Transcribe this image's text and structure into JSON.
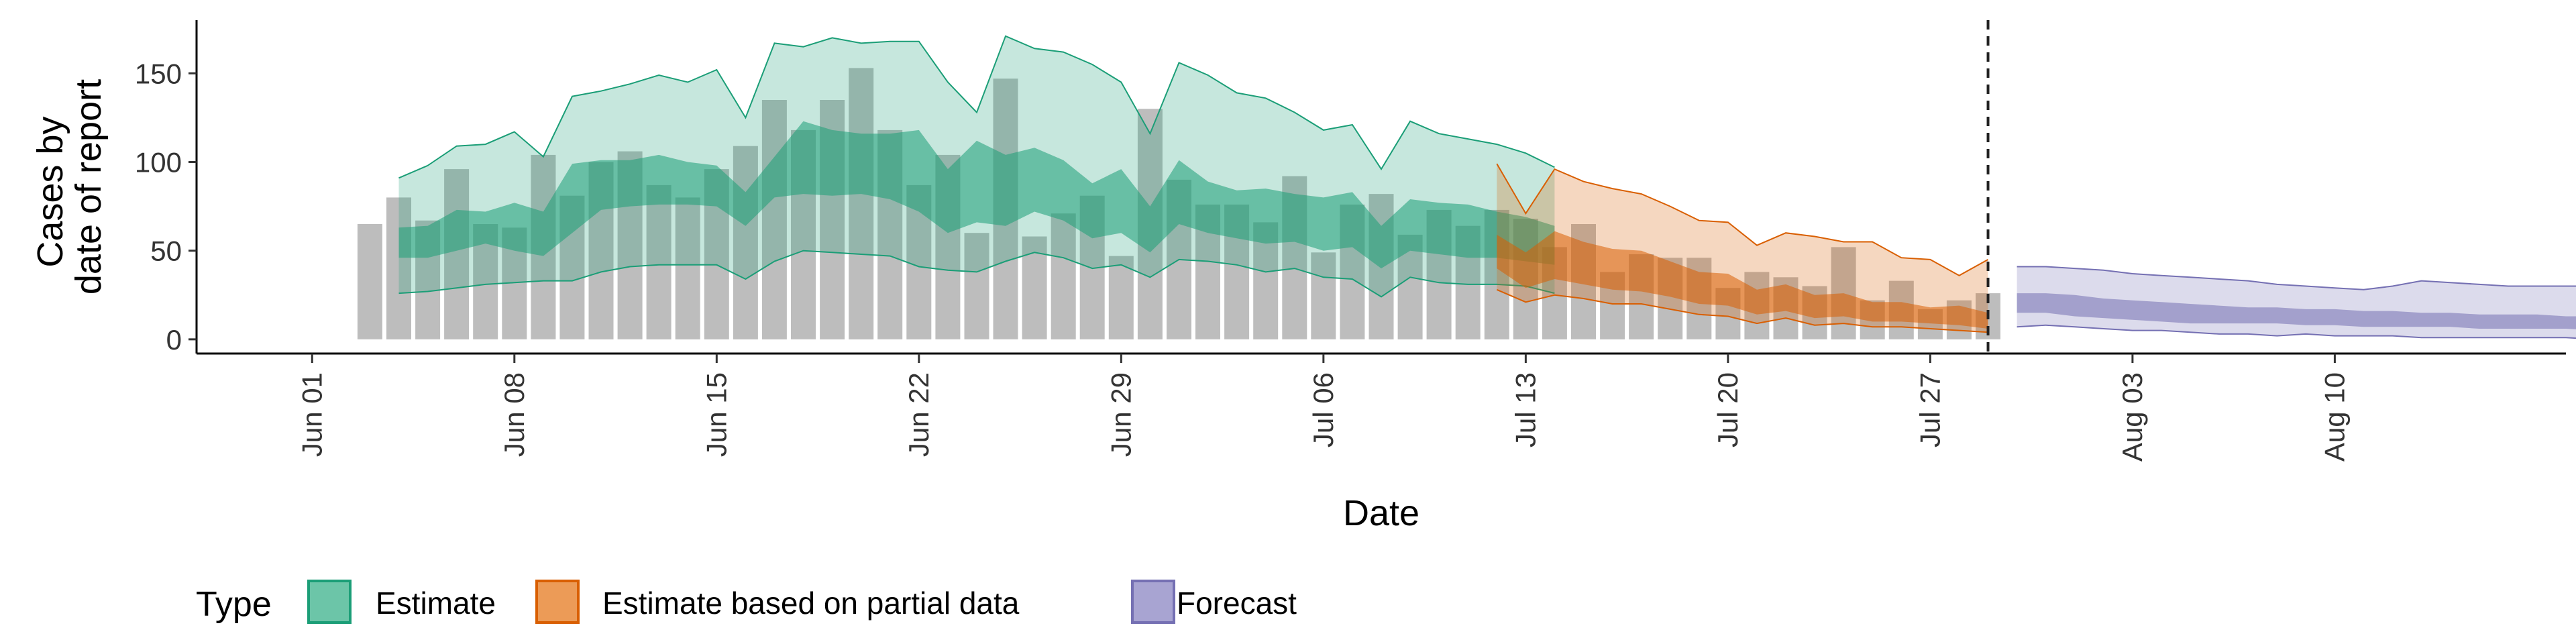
{
  "chart_data": {
    "type": "bar",
    "title": "",
    "xlabel": "Date",
    "ylabel_lines": [
      "Cases by",
      "date of report"
    ],
    "ylim": [
      -8,
      180
    ],
    "y_ticks": [
      0,
      50,
      100,
      150
    ],
    "x_range": [
      "2021-05-28",
      "2021-08-18"
    ],
    "x_ticks": [
      {
        "date": "2021-06-01",
        "label": "Jun 01"
      },
      {
        "date": "2021-06-08",
        "label": "Jun 08"
      },
      {
        "date": "2021-06-15",
        "label": "Jun 15"
      },
      {
        "date": "2021-06-22",
        "label": "Jun 22"
      },
      {
        "date": "2021-06-29",
        "label": "Jun 29"
      },
      {
        "date": "2021-07-06",
        "label": "Jul 06"
      },
      {
        "date": "2021-07-13",
        "label": "Jul 13"
      },
      {
        "date": "2021-07-20",
        "label": "Jul 20"
      },
      {
        "date": "2021-07-27",
        "label": "Jul 27"
      },
      {
        "date": "2021-08-03",
        "label": "Aug 03"
      },
      {
        "date": "2021-08-10",
        "label": "Aug 10"
      }
    ],
    "forecast_date": "2021-07-29",
    "bar_color": "#bdbdbd",
    "bar_start_date": "2021-06-03",
    "bars": [
      65,
      80,
      67,
      96,
      65,
      63,
      104,
      81,
      100,
      106,
      87,
      80,
      96,
      109,
      135,
      118,
      135,
      153,
      118,
      87,
      104,
      60,
      147,
      58,
      71,
      81,
      47,
      130,
      90,
      76,
      76,
      66,
      92,
      49,
      76,
      82,
      59,
      73,
      64,
      73,
      68,
      52,
      65,
      38,
      48,
      46,
      46,
      29,
      38,
      35,
      30,
      52,
      22,
      33,
      17,
      22,
      26
    ],
    "legend": {
      "title": "Type",
      "position": "bottom",
      "entries": [
        {
          "label": "Estimate",
          "fill": "#6cc5a8",
          "stroke": "#1b9e77"
        },
        {
          "label": "Estimate based on partial data",
          "fill": "#ec9b57",
          "stroke": "#d95f02"
        },
        {
          "label": "Forecast",
          "fill": "#a8a4d2",
          "stroke": "#7570b3"
        }
      ]
    },
    "series": [
      {
        "name": "Estimate",
        "start_date": "2021-06-04",
        "fill": "#1b9e77",
        "stroke": "#1b9e77",
        "outer_lower": [
          26,
          27,
          29,
          31,
          32,
          33,
          33,
          38,
          41,
          42,
          42,
          42,
          34,
          44,
          50,
          49,
          48,
          47,
          41,
          39,
          38,
          44,
          49,
          46,
          40,
          42,
          35,
          45,
          44,
          42,
          38,
          40,
          35,
          34,
          24,
          35,
          32,
          31,
          31,
          30,
          26
        ],
        "inner_lower": [
          46,
          46,
          50,
          54,
          50,
          47,
          60,
          73,
          75,
          76,
          76,
          75,
          64,
          80,
          82,
          81,
          82,
          79,
          72,
          60,
          66,
          64,
          72,
          67,
          57,
          60,
          49,
          65,
          60,
          57,
          54,
          55,
          50,
          52,
          40,
          50,
          48,
          46,
          46,
          44,
          42
        ],
        "inner_upper": [
          63,
          64,
          73,
          72,
          77,
          72,
          99,
          101,
          101,
          104,
          100,
          98,
          83,
          103,
          123,
          118,
          116,
          116,
          118,
          96,
          112,
          104,
          108,
          101,
          88,
          96,
          75,
          101,
          89,
          84,
          85,
          82,
          80,
          83,
          64,
          79,
          77,
          76,
          72,
          69,
          64
        ],
        "outer_upper": [
          91,
          98,
          109,
          110,
          117,
          103,
          137,
          140,
          144,
          149,
          145,
          152,
          125,
          167,
          165,
          170,
          167,
          168,
          168,
          145,
          128,
          171,
          164,
          162,
          155,
          145,
          116,
          156,
          149,
          139,
          136,
          128,
          118,
          121,
          96,
          123,
          116,
          113,
          110,
          105,
          97
        ]
      },
      {
        "name": "Estimate based on partial data",
        "start_date": "2021-07-12",
        "fill": "#d95f02",
        "stroke": "#d95f02",
        "outer_lower": [
          28,
          21,
          25,
          23,
          20,
          20,
          17,
          14,
          13,
          9,
          12,
          8,
          9,
          7,
          7,
          6,
          5,
          4
        ],
        "inner_lower": [
          40,
          29,
          34,
          31,
          28,
          27,
          24,
          20,
          19,
          14,
          16,
          12,
          13,
          10,
          10,
          9,
          8,
          6
        ],
        "inner_upper": [
          59,
          49,
          61,
          55,
          51,
          50,
          44,
          38,
          37,
          28,
          31,
          25,
          26,
          21,
          21,
          18,
          19,
          15
        ],
        "outer_upper": [
          99,
          71,
          96,
          89,
          85,
          82,
          75,
          67,
          66,
          53,
          60,
          58,
          55,
          55,
          46,
          45,
          36,
          45
        ]
      },
      {
        "name": "Forecast",
        "start_date": "2021-07-30",
        "fill": "#7570b3",
        "stroke": "#7570b3",
        "outer_lower": [
          7,
          8,
          7,
          6,
          5,
          5,
          4,
          3,
          3,
          2,
          3,
          2,
          2,
          2,
          1,
          1,
          1,
          1,
          1,
          1,
          0,
          0,
          0,
          0,
          0,
          0,
          0,
          0,
          0,
          0,
          0,
          0,
          0
        ],
        "inner_lower": [
          15,
          15,
          13,
          12,
          11,
          10,
          9,
          9,
          9,
          9,
          8,
          8,
          7,
          7,
          7,
          7,
          6,
          6,
          6,
          6,
          5,
          5,
          5,
          4,
          4,
          4,
          4,
          4,
          4,
          4,
          4,
          4,
          4
        ],
        "inner_upper": [
          26,
          26,
          25,
          23,
          22,
          21,
          20,
          19,
          18,
          18,
          17,
          17,
          16,
          16,
          15,
          15,
          14,
          14,
          14,
          13,
          13,
          13,
          12,
          12,
          12,
          12,
          11,
          11,
          11,
          11,
          11,
          10,
          10
        ],
        "outer_upper": [
          41,
          41,
          40,
          39,
          37,
          36,
          35,
          34,
          33,
          31,
          30,
          29,
          28,
          30,
          33,
          32,
          31,
          30,
          30,
          30,
          30,
          29,
          29,
          28,
          28,
          27,
          27,
          27,
          26,
          26,
          25,
          24,
          24
        ]
      }
    ]
  }
}
